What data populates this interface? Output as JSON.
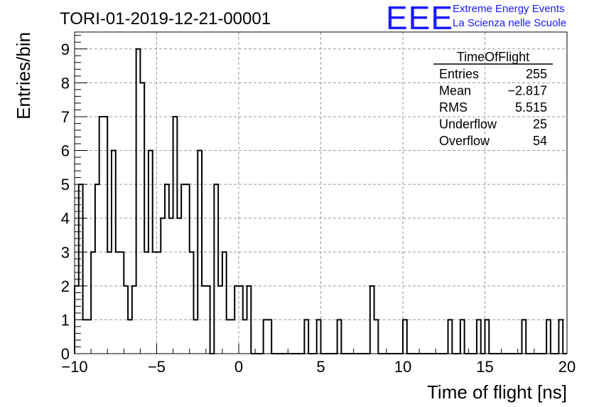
{
  "chart_data": {
    "type": "histogram",
    "title": "TORI-01-2019-12-21-00001",
    "xlabel": "Time of flight [ns]",
    "ylabel": "Entries/bin",
    "xlim": [
      -10,
      20
    ],
    "ylim": [
      0,
      9.5
    ],
    "x_ticks": [
      "−10",
      "−5",
      "0",
      "5",
      "10",
      "15",
      "20"
    ],
    "y_ticks": [
      "0",
      "1",
      "2",
      "3",
      "4",
      "5",
      "6",
      "7",
      "8",
      "9"
    ],
    "grid": true,
    "bin_width": 0.25,
    "bin_start": -10,
    "values": [
      2,
      5,
      1,
      1,
      3,
      5,
      7,
      7,
      3,
      6,
      3,
      3,
      2,
      1,
      2,
      9,
      8,
      3,
      6,
      3,
      3,
      4,
      5,
      4,
      7,
      4,
      5,
      5,
      3,
      1,
      6,
      2,
      2,
      0,
      5,
      2,
      3,
      1,
      1,
      2,
      2,
      1,
      2,
      0,
      0,
      0,
      1,
      1,
      0,
      0,
      0,
      0,
      0,
      0,
      0,
      0,
      0,
      0,
      0,
      1,
      0,
      0,
      0,
      0,
      0,
      0,
      0,
      0,
      0,
      0,
      0,
      0,
      0,
      0,
      0,
      0,
      0,
      0,
      0,
      0,
      0,
      0,
      0,
      0,
      0,
      0,
      0,
      0,
      0,
      0,
      0,
      0,
      0,
      0,
      0,
      0,
      0,
      0,
      0,
      0,
      0,
      0,
      0,
      0,
      0,
      0,
      0,
      0,
      0,
      0,
      0,
      0,
      0,
      0,
      0,
      0,
      0,
      0,
      0,
      0
    ],
    "spikes": [
      [
        4.0,
        1
      ],
      [
        6.0,
        1
      ],
      [
        8.0,
        2
      ],
      [
        8.25,
        1
      ],
      [
        10.0,
        1
      ],
      [
        12.75,
        1
      ],
      [
        13.5,
        1
      ],
      [
        14.5,
        1
      ],
      [
        15.0,
        1
      ],
      [
        17.25,
        1
      ],
      [
        18.75,
        1
      ],
      [
        19.5,
        1
      ]
    ],
    "stats_box": {
      "title": "TimeOfFlight",
      "rows": [
        {
          "label": "Entries",
          "value": "255"
        },
        {
          "label": "Mean",
          "value": "−2.817"
        },
        {
          "label": "RMS",
          "value": "5.515"
        },
        {
          "label": "Underflow",
          "value": "25"
        },
        {
          "label": "Overflow",
          "value": "54"
        }
      ]
    },
    "line_color": "#000000",
    "grid_color": "#9a9a9a"
  },
  "logo": {
    "mark": "EEE",
    "line1": "Extreme Energy Events",
    "line2": "La Scienza nelle Scuole",
    "color": "#1a1aff"
  }
}
